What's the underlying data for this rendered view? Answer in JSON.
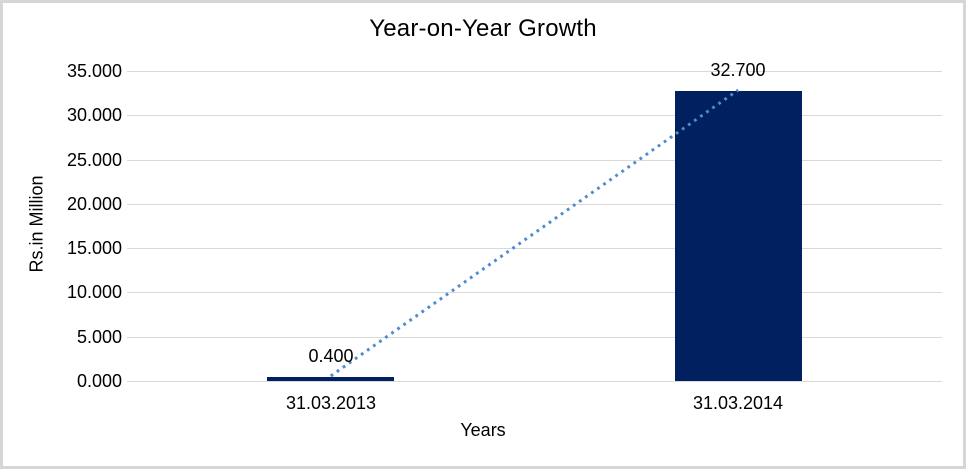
{
  "window": {
    "background": "#ffffff",
    "border_color": "#d6d6d6"
  },
  "chart_data": {
    "type": "bar",
    "title": "Year-on-Year Growth",
    "xlabel": "Years",
    "ylabel": "Rs.in Million",
    "categories": [
      "31.03.2013",
      "31.03.2014"
    ],
    "values": [
      0.4,
      32.7
    ],
    "data_labels": [
      "0.400",
      "32.700"
    ],
    "ylim": [
      0,
      35
    ],
    "yticks": [
      0,
      5,
      10,
      15,
      20,
      25,
      30,
      35
    ],
    "ytick_labels": [
      "0.000",
      "5.000",
      "10.000",
      "15.000",
      "20.000",
      "25.000",
      "30.000",
      "35.000"
    ],
    "grid": "horizontal",
    "legend": "none",
    "colors": {
      "bar": "#002060",
      "gridline": "#d9d9d9",
      "trendline": "#4f8bd0",
      "text": "#000000"
    },
    "trendline": {
      "style": "dotted",
      "connects": [
        0.4,
        32.7
      ]
    }
  }
}
